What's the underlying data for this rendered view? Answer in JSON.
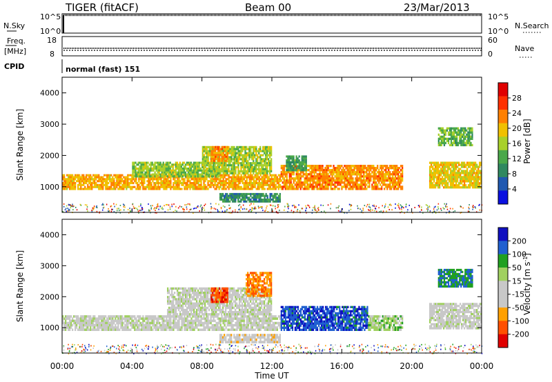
{
  "header": {
    "station": "TIGER (fitACF)",
    "beam": "Beam 00",
    "date": "23/Mar/2013"
  },
  "top_panels": {
    "nsky_label": "N.Sky",
    "nsearch_label": "N.Search",
    "nsky_ticks": [
      "10^5",
      "10^0"
    ],
    "nsearch_ticks": [
      "10^5",
      "10^0"
    ],
    "freq_label_1": "Freq.",
    "freq_label_2": "[MHz]",
    "freq_ticks": [
      "18",
      "8"
    ],
    "nave_label": "Nave",
    "nave_ticks": [
      "60",
      "0"
    ],
    "cpid_label": "CPID",
    "cpid_value": "normal (fast) 151"
  },
  "axes": {
    "y_label": "Slant Range [km]",
    "y_ticks": [
      "4000",
      "3000",
      "2000",
      "1000"
    ],
    "x_label": "Time UT",
    "x_ticks": [
      "00:00",
      "04:00",
      "08:00",
      "12:00",
      "16:00",
      "20:00",
      "00:00"
    ]
  },
  "colorbars": {
    "power": {
      "label": "Power [dB]",
      "ticks": [
        "28",
        "24",
        "20",
        "16",
        "12",
        "8",
        "4"
      ],
      "colors": [
        "#0a10e0",
        "#1f58b0",
        "#2f8860",
        "#4aa84a",
        "#a8d02a",
        "#f0c000",
        "#ff8000",
        "#ff3000",
        "#e00000"
      ]
    },
    "velocity": {
      "label": "Velocity [m s",
      "label_sup": "-1",
      "label_end": "]",
      "ticks": [
        "200",
        "100",
        "50",
        "15",
        "-15",
        "-50",
        "-100",
        "-200"
      ],
      "colors": [
        "#e00000",
        "#ff5000",
        "#ffa000",
        "#c8c8c8",
        "#c8c8c8",
        "#a0d060",
        "#20a020",
        "#2060d0",
        "#1010c0"
      ]
    }
  },
  "chart_data": [
    {
      "type": "heatmap",
      "title": "Beam 00",
      "xlabel": "Time UT",
      "ylabel": "Slant Range [km]",
      "ylim": [
        180,
        4500
      ],
      "xlim": [
        0,
        24
      ],
      "colorbar_label": "Power [dB]",
      "colorbar_range": [
        0,
        30
      ],
      "regions": [
        {
          "t0": 0.0,
          "t1": 12.5,
          "r0": 900,
          "r1": 1400,
          "value": 20
        },
        {
          "t0": 4.0,
          "t1": 9.0,
          "r0": 1300,
          "r1": 1800,
          "value": 14
        },
        {
          "t0": 8.0,
          "t1": 12.0,
          "r0": 1400,
          "r1": 2300,
          "value": 15
        },
        {
          "t0": 8.5,
          "t1": 9.5,
          "r0": 1800,
          "r1": 2300,
          "value": 22
        },
        {
          "t0": 9.0,
          "t1": 12.5,
          "r0": 500,
          "r1": 800,
          "value": 8
        },
        {
          "t0": 12.5,
          "t1": 19.5,
          "r0": 900,
          "r1": 1700,
          "value": 22
        },
        {
          "t0": 12.8,
          "t1": 14.0,
          "r0": 1500,
          "r1": 2000,
          "value": 10
        },
        {
          "t0": 21.0,
          "t1": 24.0,
          "r0": 950,
          "r1": 1800,
          "value": 18
        },
        {
          "t0": 21.5,
          "t1": 23.5,
          "r0": 2300,
          "r1": 2900,
          "value": 12
        }
      ]
    },
    {
      "type": "heatmap",
      "title": "Beam 00",
      "xlabel": "Time UT",
      "ylabel": "Slant Range [km]",
      "ylim": [
        180,
        4500
      ],
      "xlim": [
        0,
        24
      ],
      "colorbar_label": "Velocity [m s-1]",
      "colorbar_range": [
        -250,
        250
      ],
      "regions": [
        {
          "t0": 0.0,
          "t1": 12.5,
          "r0": 900,
          "r1": 1400,
          "value": 0
        },
        {
          "t0": 6.0,
          "t1": 12.0,
          "r0": 1400,
          "r1": 2300,
          "value": 0
        },
        {
          "t0": 8.5,
          "t1": 9.5,
          "r0": 1800,
          "r1": 2300,
          "value": -200
        },
        {
          "t0": 10.5,
          "t1": 12.0,
          "r0": 2000,
          "r1": 2800,
          "value": -150
        },
        {
          "t0": 9.0,
          "t1": 12.5,
          "r0": 500,
          "r1": 800,
          "value": -60
        },
        {
          "t0": 12.5,
          "t1": 17.5,
          "r0": 900,
          "r1": 1700,
          "value": 200
        },
        {
          "t0": 17.5,
          "t1": 19.5,
          "r0": 900,
          "r1": 1400,
          "value": 60
        },
        {
          "t0": 21.0,
          "t1": 24.0,
          "r0": 950,
          "r1": 1800,
          "value": 0
        },
        {
          "t0": 21.5,
          "t1": 23.5,
          "r0": 2300,
          "r1": 2900,
          "value": 150
        }
      ]
    }
  ]
}
